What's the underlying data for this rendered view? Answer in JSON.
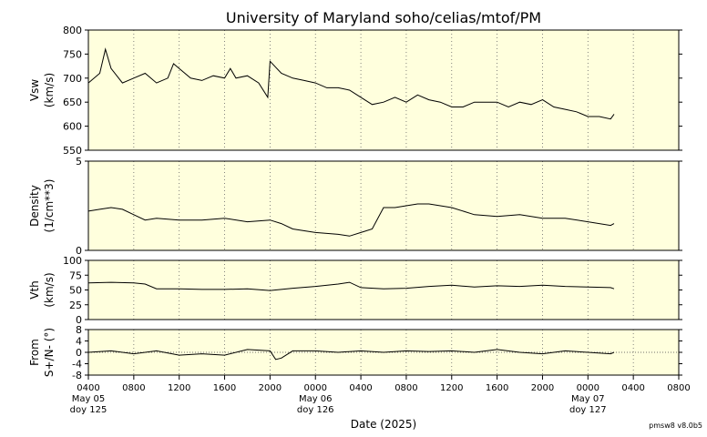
{
  "chart_data": {
    "type": "line",
    "title": "University of Maryland  soho/celias/mtof/PM",
    "xlabel": "Date (2025)",
    "x_ticks": [
      "0400",
      "0800",
      "1200",
      "1600",
      "2000",
      "0000",
      "0400",
      "0800",
      "1200",
      "1600",
      "2000",
      "0000",
      "0400",
      "0800"
    ],
    "x_tick_hours": [
      4,
      8,
      12,
      16,
      20,
      24,
      28,
      32,
      36,
      40,
      44,
      48,
      52,
      56
    ],
    "x_range_hours": [
      4,
      56
    ],
    "x_range": [
      "2025-05-05 04:00",
      "2025-05-07 08:00"
    ],
    "date_labels": [
      {
        "hour": 4,
        "date": "May 05",
        "doy": "doy 125"
      },
      {
        "hour": 24,
        "date": "May 06",
        "doy": "doy 126"
      },
      {
        "hour": 48,
        "date": "May 07",
        "doy": "doy 127"
      }
    ],
    "grid": "vertical dotted",
    "panels": [
      {
        "ylabel": [
          "Vsw",
          "(km/s)"
        ],
        "ylim": [
          550,
          800
        ],
        "yticks": [
          550,
          600,
          650,
          700,
          750,
          800
        ],
        "series": {
          "hours": [
            4,
            5,
            5.5,
            6,
            7,
            8,
            9,
            10,
            11,
            11.5,
            12,
            13,
            14,
            15,
            16,
            16.5,
            17,
            18,
            19,
            19.8,
            20,
            21,
            22,
            23,
            24,
            25,
            26,
            27,
            28,
            29,
            30,
            31,
            32,
            33,
            34,
            35,
            36,
            37,
            38,
            39,
            40,
            41,
            42,
            43,
            44,
            45,
            46,
            47,
            48,
            49,
            50,
            50.3
          ],
          "values": [
            690,
            710,
            760,
            720,
            690,
            700,
            710,
            690,
            700,
            730,
            720,
            700,
            695,
            705,
            700,
            720,
            700,
            705,
            690,
            660,
            735,
            710,
            700,
            695,
            690,
            680,
            680,
            675,
            660,
            645,
            650,
            660,
            650,
            665,
            655,
            650,
            640,
            640,
            650,
            650,
            650,
            640,
            650,
            645,
            655,
            640,
            635,
            630,
            620,
            620,
            615,
            625
          ]
        }
      },
      {
        "ylabel": [
          "Density",
          "(1/cm**3)"
        ],
        "ylim": [
          0,
          5
        ],
        "yticks": [
          0,
          5
        ],
        "series": {
          "hours": [
            4,
            5,
            6,
            7,
            8,
            9,
            10,
            12,
            14,
            16,
            18,
            20,
            21,
            22,
            24,
            26,
            27,
            28,
            29,
            30,
            31,
            32,
            33,
            34,
            35,
            36,
            38,
            40,
            42,
            44,
            46,
            48,
            50,
            50.3
          ],
          "values": [
            2.2,
            2.3,
            2.4,
            2.3,
            2.0,
            1.7,
            1.8,
            1.7,
            1.7,
            1.8,
            1.6,
            1.7,
            1.5,
            1.2,
            1.0,
            0.9,
            0.8,
            1.0,
            1.2,
            2.4,
            2.4,
            2.5,
            2.6,
            2.6,
            2.5,
            2.4,
            2.0,
            1.9,
            2.0,
            1.8,
            1.8,
            1.6,
            1.4,
            1.5
          ]
        }
      },
      {
        "ylabel": [
          "Vth",
          "(km/s)"
        ],
        "ylim": [
          0,
          100
        ],
        "yticks": [
          0,
          25,
          50,
          75,
          100
        ],
        "series": {
          "hours": [
            4,
            6,
            8,
            9,
            10,
            12,
            14,
            16,
            18,
            20,
            22,
            24,
            26,
            27,
            28,
            30,
            32,
            34,
            36,
            38,
            40,
            42,
            44,
            46,
            48,
            50,
            50.3
          ],
          "values": [
            62,
            63,
            62,
            60,
            52,
            52,
            51,
            51,
            52,
            49,
            53,
            56,
            60,
            63,
            54,
            52,
            53,
            56,
            58,
            55,
            57,
            56,
            58,
            56,
            55,
            54,
            52
          ]
        }
      },
      {
        "ylabel": [
          "From",
          "S+/N- (°)"
        ],
        "ylim": [
          -8,
          8
        ],
        "yticks": [
          -8,
          -4,
          0,
          4,
          8
        ],
        "zero_line": true,
        "series": {
          "hours": [
            4,
            6,
            8,
            10,
            12,
            14,
            16,
            18,
            20,
            20.5,
            21,
            22,
            24,
            26,
            28,
            30,
            32,
            34,
            36,
            38,
            40,
            42,
            44,
            46,
            48,
            50,
            50.3
          ],
          "values": [
            0,
            0.5,
            -0.5,
            0.5,
            -1,
            -0.5,
            -1,
            1,
            0.5,
            -2.5,
            -2,
            0.5,
            0.5,
            0,
            0.5,
            0,
            0.5,
            0.3,
            0.5,
            0,
            1,
            0,
            -0.5,
            0.5,
            0,
            -0.5,
            0
          ]
        }
      }
    ],
    "footer_note": "pmsw8 v8.0b5",
    "colors": {
      "plot_bg": "#ffffdd",
      "line": "#000000",
      "grid": "#666666"
    }
  }
}
